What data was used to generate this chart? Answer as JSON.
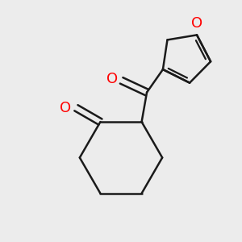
{
  "background_color": "#ececec",
  "line_color": "#1a1a1a",
  "oxygen_color": "#ff0000",
  "line_width": 1.8,
  "figsize": [
    3.0,
    3.0
  ],
  "dpi": 100,
  "xlim": [
    -1.8,
    1.8
  ],
  "ylim": [
    -2.0,
    1.6
  ]
}
